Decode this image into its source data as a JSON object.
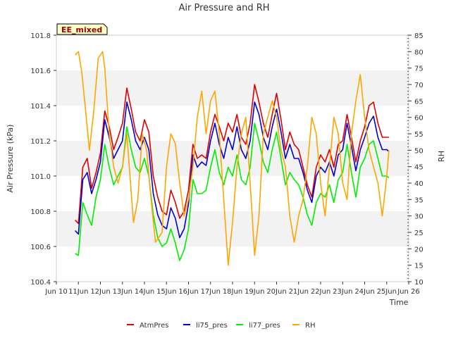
{
  "chart_data": {
    "type": "line",
    "title": "Air Pressure and RH",
    "xlabel": "Time",
    "ylabel_left": "Air Pressure (kPa)",
    "ylabel_right": "RH",
    "badge": "EE_mixed",
    "xlim": [
      10,
      26
    ],
    "ylim_left": [
      100.4,
      101.8
    ],
    "ylim_right": [
      10,
      85
    ],
    "x_ticks": [
      {
        "value": 10,
        "label": "Jun 10"
      },
      {
        "value": 11,
        "label": "11Jun"
      },
      {
        "value": 12,
        "label": "12Jun"
      },
      {
        "value": 13,
        "label": "13Jun"
      },
      {
        "value": 14,
        "label": "14Jun"
      },
      {
        "value": 15,
        "label": "15Jun"
      },
      {
        "value": 16,
        "label": "16Jun"
      },
      {
        "value": 17,
        "label": "17Jun"
      },
      {
        "value": 18,
        "label": "18Jun"
      },
      {
        "value": 19,
        "label": "19Jun"
      },
      {
        "value": 20,
        "label": "20Jun"
      },
      {
        "value": 21,
        "label": "21Jun"
      },
      {
        "value": 22,
        "label": "22Jun"
      },
      {
        "value": 23,
        "label": "23Jun"
      },
      {
        "value": 24,
        "label": "24Jun"
      },
      {
        "value": 25,
        "label": "25Jun"
      },
      {
        "value": 26,
        "label": "Jun 26"
      }
    ],
    "y_ticks_left": [
      "100.4",
      "100.6",
      "100.8",
      "101.0",
      "101.2",
      "101.4",
      "101.6",
      "101.8"
    ],
    "y_ticks_right": [
      "10",
      "15",
      "20",
      "25",
      "30",
      "35",
      "40",
      "45",
      "50",
      "55",
      "60",
      "65",
      "70",
      "75",
      "80",
      "85"
    ],
    "grid": "horizontal bands",
    "legend_position": "bottom",
    "series": [
      {
        "name": "AtmPres",
        "color": "#dd0000",
        "axis": "left",
        "x": [
          10.85,
          11.0,
          11.2,
          11.4,
          11.6,
          11.8,
          12.0,
          12.2,
          12.4,
          12.6,
          12.8,
          13.0,
          13.2,
          13.4,
          13.6,
          13.8,
          14.0,
          14.2,
          14.4,
          14.6,
          14.8,
          15.0,
          15.2,
          15.4,
          15.6,
          15.8,
          16.0,
          16.2,
          16.4,
          16.6,
          16.8,
          17.0,
          17.2,
          17.4,
          17.6,
          17.8,
          18.0,
          18.2,
          18.4,
          18.6,
          18.8,
          19.0,
          19.2,
          19.4,
          19.6,
          19.8,
          20.0,
          20.2,
          20.4,
          20.6,
          20.8,
          21.0,
          21.2,
          21.4,
          21.6,
          21.8,
          22.0,
          22.2,
          22.4,
          22.6,
          22.8,
          23.0,
          23.2,
          23.4,
          23.6,
          23.8,
          24.0,
          24.2,
          24.4,
          24.6,
          24.8,
          25.0,
          25.1
        ],
        "y": [
          100.75,
          100.73,
          101.05,
          101.1,
          100.93,
          101.02,
          101.13,
          101.37,
          101.28,
          101.15,
          101.22,
          101.3,
          101.5,
          101.38,
          101.25,
          101.2,
          101.32,
          101.25,
          101.0,
          100.88,
          100.8,
          100.78,
          100.92,
          100.85,
          100.76,
          100.8,
          100.92,
          101.18,
          101.1,
          101.12,
          101.1,
          101.25,
          101.35,
          101.28,
          101.2,
          101.3,
          101.25,
          101.35,
          101.22,
          101.18,
          101.3,
          101.52,
          101.42,
          101.3,
          101.22,
          101.35,
          101.47,
          101.32,
          101.15,
          101.25,
          101.18,
          101.15,
          101.05,
          100.95,
          100.88,
          101.05,
          101.12,
          101.08,
          101.15,
          101.05,
          101.18,
          101.2,
          101.35,
          101.22,
          101.08,
          101.2,
          101.28,
          101.4,
          101.42,
          101.3,
          101.22,
          101.22,
          101.22
        ]
      },
      {
        "name": "li75_pres",
        "color": "#0000cc",
        "axis": "left",
        "x": [
          10.85,
          11.0,
          11.2,
          11.4,
          11.6,
          11.8,
          12.0,
          12.2,
          12.4,
          12.6,
          12.8,
          13.0,
          13.2,
          13.4,
          13.6,
          13.8,
          14.0,
          14.2,
          14.4,
          14.6,
          14.8,
          15.0,
          15.2,
          15.4,
          15.6,
          15.8,
          16.0,
          16.2,
          16.4,
          16.6,
          16.8,
          17.0,
          17.2,
          17.4,
          17.6,
          17.8,
          18.0,
          18.2,
          18.4,
          18.6,
          18.8,
          19.0,
          19.2,
          19.4,
          19.6,
          19.8,
          20.0,
          20.2,
          20.4,
          20.6,
          20.8,
          21.0,
          21.2,
          21.4,
          21.6,
          21.8,
          22.0,
          22.2,
          22.4,
          22.6,
          22.8,
          23.0,
          23.2,
          23.4,
          23.6,
          23.8,
          24.0,
          24.2,
          24.4,
          24.6,
          24.8,
          25.0,
          25.1
        ],
        "y": [
          100.69,
          100.67,
          100.98,
          101.02,
          100.9,
          100.98,
          101.08,
          101.32,
          101.22,
          101.1,
          101.15,
          101.2,
          101.42,
          101.32,
          101.2,
          101.15,
          101.22,
          101.15,
          100.9,
          100.78,
          100.72,
          100.7,
          100.82,
          100.76,
          100.65,
          100.7,
          100.84,
          101.12,
          101.05,
          101.08,
          101.06,
          101.2,
          101.3,
          101.18,
          101.1,
          101.22,
          101.15,
          101.28,
          101.15,
          101.1,
          101.2,
          101.42,
          101.35,
          101.22,
          101.15,
          101.28,
          101.38,
          101.25,
          101.1,
          101.18,
          101.1,
          101.1,
          101.02,
          100.92,
          100.85,
          101.0,
          101.05,
          101.02,
          101.08,
          101.0,
          101.12,
          101.15,
          101.3,
          101.17,
          101.03,
          101.15,
          101.22,
          101.3,
          101.34,
          101.22,
          101.15,
          101.15,
          101.14
        ]
      },
      {
        "name": "li77_pres",
        "color": "#00ee00",
        "axis": "left",
        "x": [
          10.85,
          11.0,
          11.2,
          11.4,
          11.6,
          11.8,
          12.0,
          12.2,
          12.4,
          12.6,
          12.8,
          13.0,
          13.2,
          13.4,
          13.6,
          13.8,
          14.0,
          14.2,
          14.4,
          14.6,
          14.8,
          15.0,
          15.2,
          15.4,
          15.6,
          15.8,
          16.0,
          16.2,
          16.4,
          16.6,
          16.8,
          17.0,
          17.2,
          17.4,
          17.6,
          17.8,
          18.0,
          18.2,
          18.4,
          18.6,
          18.8,
          19.0,
          19.2,
          19.4,
          19.6,
          19.8,
          20.0,
          20.2,
          20.4,
          20.6,
          20.8,
          21.0,
          21.2,
          21.4,
          21.6,
          21.8,
          22.0,
          22.2,
          22.4,
          22.6,
          22.8,
          23.0,
          23.2,
          23.4,
          23.6,
          23.8,
          24.0,
          24.2,
          24.4,
          24.6,
          24.8,
          25.0,
          25.1
        ],
        "y": [
          100.56,
          100.55,
          100.85,
          100.78,
          100.72,
          100.88,
          100.98,
          101.18,
          101.05,
          100.95,
          101.0,
          101.05,
          101.28,
          101.15,
          101.05,
          101.02,
          101.1,
          101.0,
          100.78,
          100.65,
          100.6,
          100.62,
          100.7,
          100.62,
          100.52,
          100.58,
          100.7,
          100.98,
          100.9,
          100.9,
          100.92,
          101.05,
          101.15,
          101.02,
          100.95,
          101.05,
          101.0,
          101.12,
          100.98,
          100.95,
          101.05,
          101.3,
          101.2,
          101.08,
          101.02,
          101.15,
          101.25,
          101.1,
          100.95,
          101.02,
          100.98,
          100.95,
          100.88,
          100.78,
          100.72,
          100.85,
          100.9,
          100.88,
          100.95,
          100.85,
          100.98,
          101.02,
          101.18,
          101.02,
          100.88,
          101.05,
          101.1,
          101.18,
          101.2,
          101.1,
          101.0,
          101.0,
          100.99
        ]
      },
      {
        "name": "RH",
        "color": "#ffa500",
        "axis": "right",
        "x": [
          10.85,
          11.0,
          11.15,
          11.3,
          11.5,
          11.7,
          11.9,
          12.1,
          12.2,
          12.4,
          12.6,
          12.8,
          13.0,
          13.2,
          13.5,
          13.7,
          13.9,
          14.1,
          14.3,
          14.5,
          14.8,
          15.0,
          15.2,
          15.4,
          15.6,
          15.8,
          16.0,
          16.2,
          16.4,
          16.6,
          16.8,
          17.0,
          17.2,
          17.4,
          17.6,
          17.8,
          18.0,
          18.2,
          18.4,
          18.6,
          18.8,
          19.0,
          19.2,
          19.4,
          19.6,
          19.8,
          20.0,
          20.2,
          20.4,
          20.6,
          20.8,
          21.0,
          21.2,
          21.4,
          21.6,
          21.8,
          22.0,
          22.2,
          22.4,
          22.6,
          22.8,
          23.0,
          23.2,
          23.4,
          23.6,
          23.8,
          24.0,
          24.2,
          24.4,
          24.6,
          24.8,
          25.0,
          25.1
        ],
        "y": [
          79,
          80,
          74,
          64,
          50,
          62,
          78,
          80,
          75,
          55,
          45,
          40,
          45,
          55,
          28,
          35,
          55,
          50,
          35,
          22,
          25,
          45,
          55,
          52,
          40,
          30,
          35,
          45,
          60,
          68,
          55,
          65,
          68,
          55,
          35,
          15,
          28,
          45,
          55,
          60,
          40,
          18,
          30,
          55,
          60,
          65,
          60,
          50,
          45,
          30,
          22,
          30,
          35,
          45,
          60,
          55,
          40,
          30,
          45,
          60,
          55,
          40,
          35,
          55,
          65,
          73,
          60,
          50,
          45,
          40,
          30,
          42,
          50
        ]
      }
    ]
  }
}
